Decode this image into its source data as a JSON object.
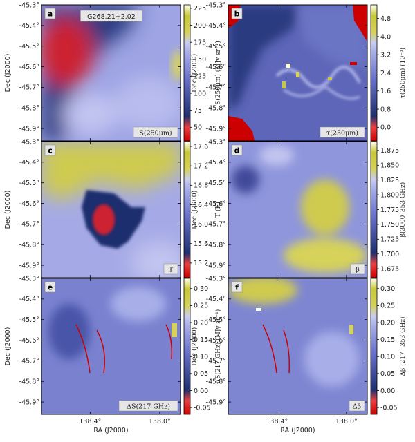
{
  "figure_title": "G268.21+2.02",
  "axes": {
    "dec_label": "Dec (J2000)",
    "ra_label": "RA (J2000)",
    "dec_ticks": [
      "-45.3°",
      "-45.4°",
      "-45.5°",
      "-45.6°",
      "-45.7°",
      "-45.8°",
      "-45.9°"
    ],
    "dec_values": [
      -45.3,
      -45.4,
      -45.5,
      -45.6,
      -45.7,
      -45.8,
      -45.9
    ],
    "dec_range": [
      -45.3,
      -45.96
    ],
    "ra_ticks": [
      "138.4°",
      "138.0°"
    ],
    "ra_values": [
      138.4,
      138.0
    ],
    "ra_range": [
      138.68,
      137.88
    ]
  },
  "colors": {
    "low": "#cc0000",
    "dark": "#1f2f6e",
    "mid": "#8c95e0",
    "light": "#c9ccf0",
    "high": "#c8c83a",
    "peak": "#ffffee"
  },
  "chart_data": [
    {
      "type": "heatmap",
      "letter": "a",
      "tag": "S(250μm)",
      "colorbar_label": "S(250μm) (MJy sr⁻¹)",
      "ticks": [
        "50",
        "75",
        "100",
        "125",
        "150",
        "175",
        "200",
        "225"
      ],
      "tick_values": [
        50,
        75,
        100,
        125,
        150,
        175,
        200,
        225
      ],
      "vrange": [
        30,
        230
      ]
    },
    {
      "type": "heatmap",
      "letter": "b",
      "tag": "τ(250μm)",
      "colorbar_label": "τ(250μm) (10⁻³)",
      "ticks": [
        "0.0",
        "0.8",
        "1.6",
        "2.4",
        "3.2",
        "4.0",
        "4.8"
      ],
      "tick_values": [
        0.0,
        0.8,
        1.6,
        2.4,
        3.2,
        4.0,
        4.8
      ],
      "vrange": [
        -0.6,
        5.4
      ]
    },
    {
      "type": "heatmap",
      "letter": "c",
      "tag": "T",
      "colorbar_label": "T (K)",
      "ticks": [
        "15.2",
        "15.6",
        "16.0",
        "16.4",
        "16.8",
        "17.2",
        "17.6"
      ],
      "tick_values": [
        15.2,
        15.6,
        16.0,
        16.4,
        16.8,
        17.2,
        17.6
      ],
      "vrange": [
        14.9,
        17.7
      ]
    },
    {
      "type": "heatmap",
      "letter": "d",
      "tag": "β",
      "colorbar_label": "β(3000–353 GHz)",
      "ticks": [
        "1.675",
        "1.700",
        "1.725",
        "1.750",
        "1.775",
        "1.800",
        "1.825",
        "1.850",
        "1.875"
      ],
      "tick_values": [
        1.675,
        1.7,
        1.725,
        1.75,
        1.775,
        1.8,
        1.825,
        1.85,
        1.875
      ],
      "vrange": [
        1.66,
        1.89
      ]
    },
    {
      "type": "heatmap",
      "letter": "e",
      "tag": "ΔS(217 GHz)",
      "colorbar_label": "ΔS(217 GHz) (MJy sr⁻¹)",
      "ticks": [
        "-0.05",
        "0.00",
        "0.05",
        "0.10",
        "0.15",
        "0.20",
        "0.25",
        "0.30"
      ],
      "tick_values": [
        -0.05,
        0.0,
        0.05,
        0.1,
        0.15,
        0.2,
        0.25,
        0.3
      ],
      "vrange": [
        -0.07,
        0.33
      ]
    },
    {
      "type": "heatmap",
      "letter": "f",
      "tag": "Δβ",
      "colorbar_label": "Δβ (217 –353 GHz)",
      "ticks": [
        "-0.05",
        "0.00",
        "0.05",
        "0.10",
        "0.15",
        "0.20",
        "0.25",
        "0.30"
      ],
      "tick_values": [
        -0.05,
        0.0,
        0.05,
        0.1,
        0.15,
        0.2,
        0.25,
        0.3
      ],
      "vrange": [
        -0.07,
        0.33
      ]
    }
  ]
}
